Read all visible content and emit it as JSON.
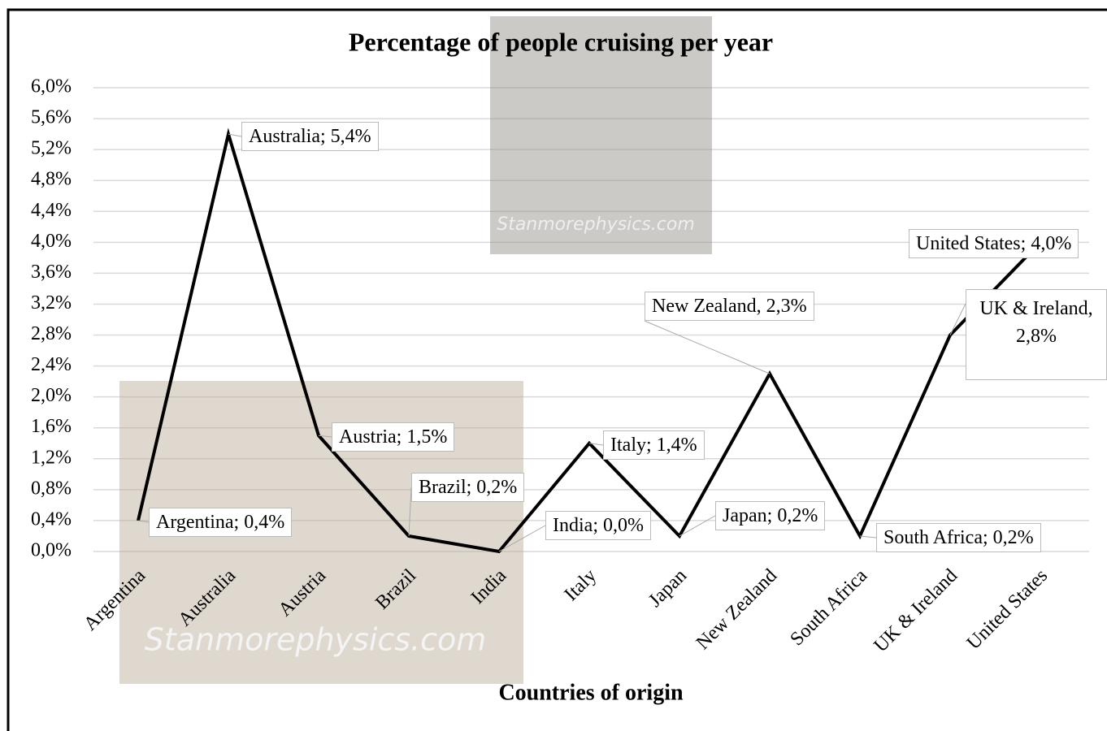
{
  "chart_data": {
    "type": "line",
    "title": "Percentage of people cruising per year",
    "x_label": "Countries of origin",
    "watermark": "Stanmorephysics.com",
    "categories": [
      "Argentina",
      "Australia",
      "Austria",
      "Brazil",
      "India",
      "Italy",
      "Japan",
      "New Zealand",
      "South Africa",
      "UK & Ireland",
      "United States"
    ],
    "values": [
      0.4,
      5.4,
      1.5,
      0.2,
      0,
      1.4,
      0.2,
      2.3,
      0.2,
      2.8,
      4.0
    ],
    "value_labels": [
      "Argentina; 0,4%",
      "Australia; 5,4%",
      "Austria; 1,5%",
      "Brazil; 0,2%",
      "India; 0,0%",
      "Italy; 1,4%",
      "Japan; 0,2%",
      "New Zealand, 2,3%",
      "South Africa; 0,2%",
      "UK & Ireland, 2,8%",
      "United States; 4,0%"
    ],
    "color": "#000000",
    "ylim": [
      0,
      6
    ],
    "yticks": [
      {
        "value": 0,
        "label": "0,0%"
      },
      {
        "value": 0.4,
        "label": "0,4%"
      },
      {
        "value": 0.8,
        "label": "0,8%"
      },
      {
        "value": 1.2,
        "label": "1,2%"
      },
      {
        "value": 1.6,
        "label": "1,6%"
      },
      {
        "value": 2.0,
        "label": "2,0%"
      },
      {
        "value": 2.4,
        "label": "2,4%"
      },
      {
        "value": 2.8,
        "label": "2,8%"
      },
      {
        "value": 3.2,
        "label": "3,2%"
      },
      {
        "value": 3.6,
        "label": "3,6%"
      },
      {
        "value": 4.0,
        "label": "4,0%"
      },
      {
        "value": 4.4,
        "label": "4,4%"
      },
      {
        "value": 4.8,
        "label": "4,8%"
      },
      {
        "value": 5.2,
        "label": "5,2%"
      },
      {
        "value": 5.6,
        "label": "5,6%"
      },
      {
        "value": 6.0,
        "label": "6,0%"
      }
    ],
    "grid": true
  }
}
